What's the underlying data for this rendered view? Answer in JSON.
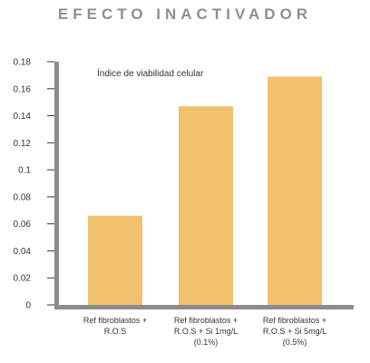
{
  "chart_data": {
    "type": "bar",
    "title": "EFECTO INACTIVADOR",
    "annotation": "Índice de viabilidad celular",
    "categories": [
      [
        "Ref fibroblastos +",
        "R.O.S"
      ],
      [
        "Ref fibroblastos +",
        "R.O.S + Si 1mg/L",
        "(0.1%)"
      ],
      [
        "Ref fibroblastos +",
        "R.O.S + Si 5mg/L",
        "(0.5%)"
      ]
    ],
    "values": [
      0.066,
      0.147,
      0.169
    ],
    "ylim": [
      0,
      0.18
    ],
    "yticks": [
      0,
      0.02,
      0.04,
      0.06,
      0.08,
      0.1,
      0.12,
      0.14,
      0.16,
      0.18
    ],
    "ytick_labels": [
      "0",
      "0.02",
      "0.04",
      "0.06",
      "0.08",
      "0.1",
      "0.12",
      "0.14",
      "0.16",
      "0.18"
    ],
    "grid": false,
    "colors": {
      "bar": "#f2c16e",
      "axis": "#8c8c8c",
      "title": "#8f8f8f"
    }
  }
}
